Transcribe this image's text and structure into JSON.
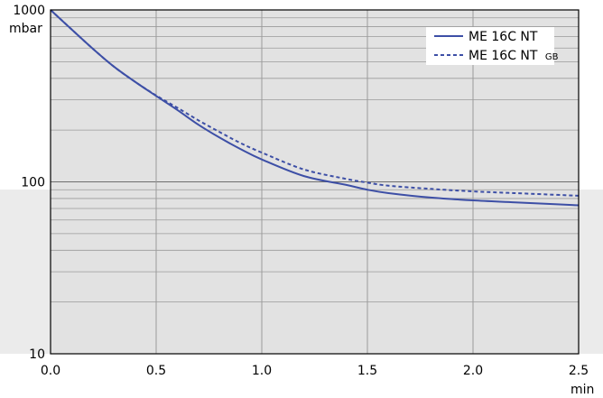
{
  "chart_data": {
    "type": "line",
    "title": "",
    "xlabel": "min",
    "ylabel": "mbar",
    "xlim": [
      0,
      2.5
    ],
    "ylim": [
      10,
      1000
    ],
    "y_scale": "log",
    "grid": true,
    "legend_position": "top-right",
    "x_ticks": [
      {
        "value": 0,
        "label": "0.0"
      },
      {
        "value": 0.5,
        "label": "0.5"
      },
      {
        "value": 1.0,
        "label": "1.0"
      },
      {
        "value": 1.5,
        "label": "1.5"
      },
      {
        "value": 2.0,
        "label": "2.0"
      },
      {
        "value": 2.5,
        "label": "2.5"
      }
    ],
    "y_ticks": [
      {
        "value": 10,
        "label": "10"
      },
      {
        "value": 100,
        "label": "100"
      },
      {
        "value": 1000,
        "label": "1000"
      }
    ],
    "series": [
      {
        "name": "ME 16C NT",
        "name_sub": "",
        "style": "solid",
        "color": "#3d4fa6",
        "x": [
          0,
          0.1,
          0.2,
          0.3,
          0.4,
          0.5,
          0.6,
          0.7,
          0.8,
          0.9,
          1.0,
          1.2,
          1.4,
          1.5,
          1.6,
          1.8,
          2.0,
          2.2,
          2.4,
          2.5
        ],
        "y": [
          1000,
          770,
          595,
          468,
          382,
          316,
          262,
          215,
          181,
          155,
          135,
          108,
          96,
          90,
          86,
          81,
          78,
          76,
          74,
          73
        ]
      },
      {
        "name": "ME 16C NT",
        "name_sub": "GB",
        "style": "dashed",
        "color": "#3d4fa6",
        "x": [
          0,
          0.1,
          0.2,
          0.3,
          0.4,
          0.5,
          0.6,
          0.7,
          0.8,
          0.9,
          1.0,
          1.2,
          1.4,
          1.5,
          1.6,
          1.8,
          2.0,
          2.2,
          2.4,
          2.5
        ],
        "y": [
          1000,
          770,
          595,
          468,
          382,
          318,
          270,
          228,
          195,
          168,
          148,
          118,
          104,
          99,
          95,
          91,
          88,
          86,
          84,
          83
        ]
      }
    ]
  }
}
